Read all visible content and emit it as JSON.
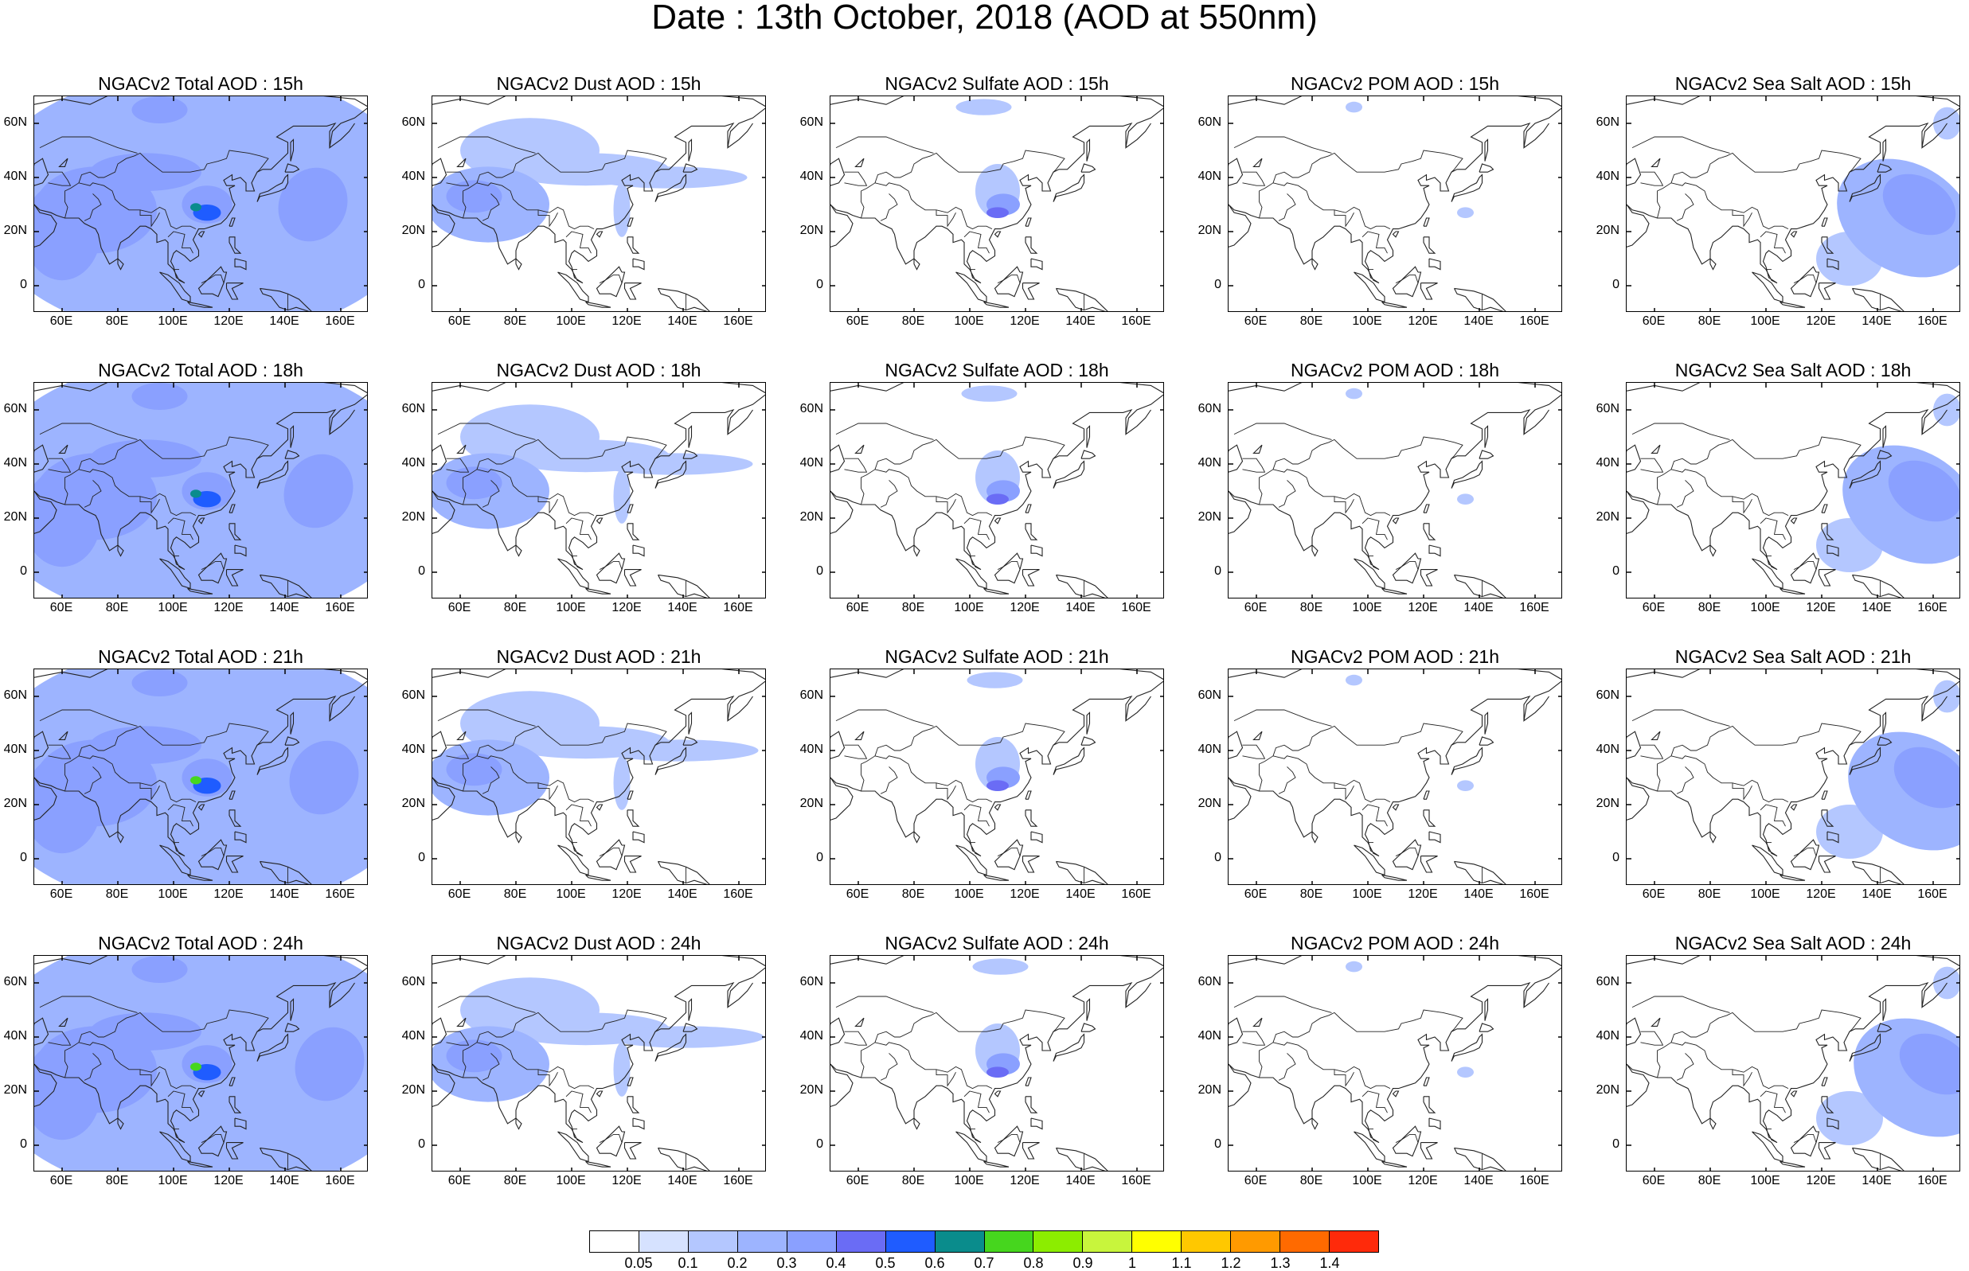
{
  "title": "Date : 13th October, 2018 (AOD at 550nm)",
  "panels": [
    {
      "title": "NGACv2 Total AOD : 15h",
      "species": "total",
      "hour": "15h"
    },
    {
      "title": "NGACv2 Dust AOD : 15h",
      "species": "dust",
      "hour": "15h"
    },
    {
      "title": "NGACv2 Sulfate AOD : 15h",
      "species": "sulfate",
      "hour": "15h"
    },
    {
      "title": "NGACv2 POM AOD : 15h",
      "species": "pom",
      "hour": "15h"
    },
    {
      "title": "NGACv2 Sea Salt AOD : 15h",
      "species": "seasalt",
      "hour": "15h"
    },
    {
      "title": "NGACv2 Total AOD : 18h",
      "species": "total",
      "hour": "18h"
    },
    {
      "title": "NGACv2 Dust AOD : 18h",
      "species": "dust",
      "hour": "18h"
    },
    {
      "title": "NGACv2 Sulfate AOD : 18h",
      "species": "sulfate",
      "hour": "18h"
    },
    {
      "title": "NGACv2 POM AOD : 18h",
      "species": "pom",
      "hour": "18h"
    },
    {
      "title": "NGACv2 Sea Salt AOD : 18h",
      "species": "seasalt",
      "hour": "18h"
    },
    {
      "title": "NGACv2 Total AOD : 21h",
      "species": "total",
      "hour": "21h"
    },
    {
      "title": "NGACv2 Dust AOD : 21h",
      "species": "dust",
      "hour": "21h"
    },
    {
      "title": "NGACv2 Sulfate AOD : 21h",
      "species": "sulfate",
      "hour": "21h"
    },
    {
      "title": "NGACv2 POM AOD : 21h",
      "species": "pom",
      "hour": "21h"
    },
    {
      "title": "NGACv2 Sea Salt AOD : 21h",
      "species": "seasalt",
      "hour": "21h"
    },
    {
      "title": "NGACv2 Total AOD : 24h",
      "species": "total",
      "hour": "24h"
    },
    {
      "title": "NGACv2 Dust AOD : 24h",
      "species": "dust",
      "hour": "24h"
    },
    {
      "title": "NGACv2 Sulfate AOD : 24h",
      "species": "sulfate",
      "hour": "24h"
    },
    {
      "title": "NGACv2 POM AOD : 24h",
      "species": "pom",
      "hour": "24h"
    },
    {
      "title": "NGACv2 Sea Salt  AOD : 24h",
      "species": "seasalt",
      "hour": "24h"
    }
  ],
  "map_extent": {
    "lon_min": 50,
    "lon_max": 170,
    "lat_min": -10,
    "lat_max": 70
  },
  "x_ticks": [
    "60E",
    "80E",
    "100E",
    "120E",
    "140E",
    "160E"
  ],
  "x_tick_values": [
    60,
    80,
    100,
    120,
    140,
    160
  ],
  "y_ticks": [
    "60N",
    "40N",
    "20N",
    "0"
  ],
  "y_tick_values": [
    60,
    40,
    20,
    0
  ],
  "colorbar": {
    "labels": [
      "0.05",
      "0.1",
      "0.2",
      "0.3",
      "0.4",
      "0.5",
      "0.6",
      "0.7",
      "0.8",
      "0.9",
      "1",
      "1.1",
      "1.2",
      "1.3",
      "1.4"
    ],
    "colors": [
      "#ffffff",
      "#d6e2ff",
      "#b4c7ff",
      "#9db4ff",
      "#8aa0ff",
      "#6a6cf5",
      "#1f5cff",
      "#0a8c8c",
      "#46d61e",
      "#8ced00",
      "#c8f53c",
      "#ffff00",
      "#ffc800",
      "#ff9a00",
      "#ff6a00",
      "#ff2a0a"
    ]
  }
}
